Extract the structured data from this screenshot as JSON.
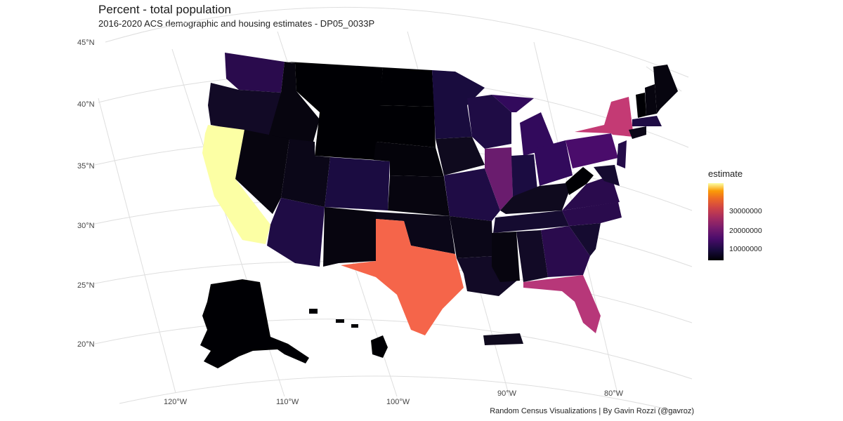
{
  "header": {
    "title": "Percent - total population",
    "subtitle": "2016-2020 ACS demographic and housing estimates - DP05_0033P"
  },
  "caption": "Random Census Visualizations | By Gavin Rozzi (@gavroz)",
  "legend": {
    "title": "estimate",
    "ticks": [
      "30000000",
      "20000000",
      "10000000"
    ],
    "colormap": "magma"
  },
  "axes": {
    "lat_labels": [
      "45°N",
      "40°N",
      "35°N",
      "30°N",
      "25°N",
      "20°N"
    ],
    "lon_labels": [
      "120°W",
      "110°W",
      "100°W",
      "90°W",
      "80°W"
    ]
  },
  "colors": {
    "lowest": "#000004",
    "highest": "#fcffa4"
  }
}
